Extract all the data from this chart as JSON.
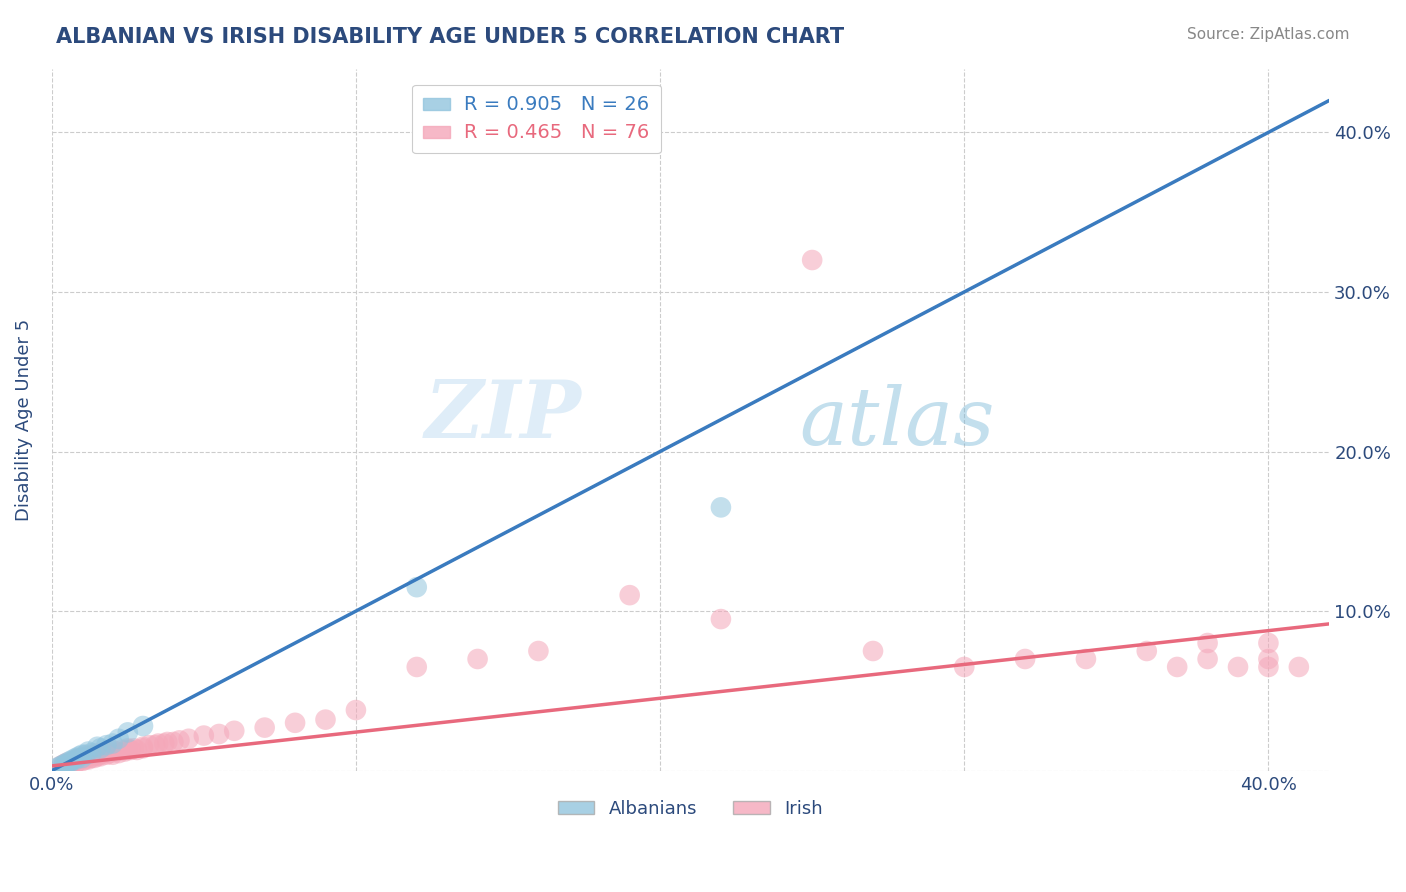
{
  "title": "ALBANIAN VS IRISH DISABILITY AGE UNDER 5 CORRELATION CHART",
  "source": "Source: ZipAtlas.com",
  "ylabel": "Disability Age Under 5",
  "watermark_zip": "ZIP",
  "watermark_atlas": "atlas",
  "xlim": [
    0.0,
    0.42
  ],
  "ylim": [
    0.0,
    0.44
  ],
  "albanians_R": 0.905,
  "albanians_N": 26,
  "irish_R": 0.465,
  "irish_N": 76,
  "albanians_color": "#92c5de",
  "irish_color": "#f4a7b9",
  "albanians_line_color": "#3a7bbf",
  "irish_line_color": "#e8697d",
  "trendline_gray_color": "#b8b8b8",
  "legend_albanians_label": "Albanians",
  "legend_irish_label": "Irish",
  "background_color": "#ffffff",
  "grid_color": "#cccccc",
  "title_color": "#2c4a7c",
  "axis_label_color": "#2c4a7c",
  "tick_color": "#2c4a7c",
  "source_color": "#888888",
  "albanians_line_x0": 0.0,
  "albanians_line_y0": 0.0,
  "albanians_line_x1": 0.42,
  "albanians_line_y1": 0.42,
  "irish_line_x0": 0.0,
  "irish_line_y0": 0.003,
  "irish_line_x1": 0.42,
  "irish_line_y1": 0.092,
  "gray_line_x0": 0.0,
  "gray_line_y0": 0.0,
  "gray_line_x1": 0.42,
  "gray_line_y1": 0.42,
  "albanians_x": [
    0.002,
    0.003,
    0.004,
    0.004,
    0.005,
    0.005,
    0.006,
    0.006,
    0.007,
    0.008,
    0.008,
    0.009,
    0.01,
    0.01,
    0.011,
    0.012,
    0.013,
    0.015,
    0.016,
    0.018,
    0.02,
    0.022,
    0.025,
    0.03,
    0.12,
    0.22
  ],
  "albanians_y": [
    0.002,
    0.003,
    0.004,
    0.003,
    0.005,
    0.004,
    0.006,
    0.005,
    0.007,
    0.008,
    0.007,
    0.009,
    0.01,
    0.008,
    0.01,
    0.012,
    0.011,
    0.015,
    0.014,
    0.016,
    0.017,
    0.02,
    0.024,
    0.028,
    0.115,
    0.165
  ],
  "irish_x": [
    0.003,
    0.004,
    0.005,
    0.005,
    0.006,
    0.007,
    0.007,
    0.008,
    0.008,
    0.009,
    0.009,
    0.01,
    0.01,
    0.011,
    0.011,
    0.012,
    0.012,
    0.013,
    0.013,
    0.014,
    0.014,
    0.015,
    0.015,
    0.016,
    0.016,
    0.017,
    0.018,
    0.018,
    0.019,
    0.02,
    0.02,
    0.021,
    0.022,
    0.023,
    0.024,
    0.025,
    0.025,
    0.026,
    0.027,
    0.028,
    0.03,
    0.03,
    0.032,
    0.034,
    0.035,
    0.037,
    0.038,
    0.04,
    0.042,
    0.045,
    0.05,
    0.055,
    0.06,
    0.07,
    0.08,
    0.09,
    0.1,
    0.12,
    0.14,
    0.16,
    0.19,
    0.22,
    0.25,
    0.27,
    0.3,
    0.32,
    0.34,
    0.36,
    0.37,
    0.38,
    0.38,
    0.39,
    0.4,
    0.4,
    0.4,
    0.41
  ],
  "irish_y": [
    0.003,
    0.004,
    0.003,
    0.005,
    0.004,
    0.005,
    0.006,
    0.005,
    0.007,
    0.006,
    0.008,
    0.006,
    0.008,
    0.007,
    0.009,
    0.007,
    0.009,
    0.008,
    0.01,
    0.008,
    0.01,
    0.009,
    0.011,
    0.01,
    0.009,
    0.011,
    0.01,
    0.012,
    0.011,
    0.01,
    0.013,
    0.012,
    0.011,
    0.013,
    0.012,
    0.013,
    0.014,
    0.013,
    0.014,
    0.013,
    0.014,
    0.015,
    0.016,
    0.016,
    0.017,
    0.017,
    0.018,
    0.018,
    0.019,
    0.02,
    0.022,
    0.023,
    0.025,
    0.027,
    0.03,
    0.032,
    0.038,
    0.065,
    0.07,
    0.075,
    0.11,
    0.095,
    0.32,
    0.075,
    0.065,
    0.07,
    0.07,
    0.075,
    0.065,
    0.07,
    0.08,
    0.065,
    0.065,
    0.07,
    0.08,
    0.065
  ]
}
